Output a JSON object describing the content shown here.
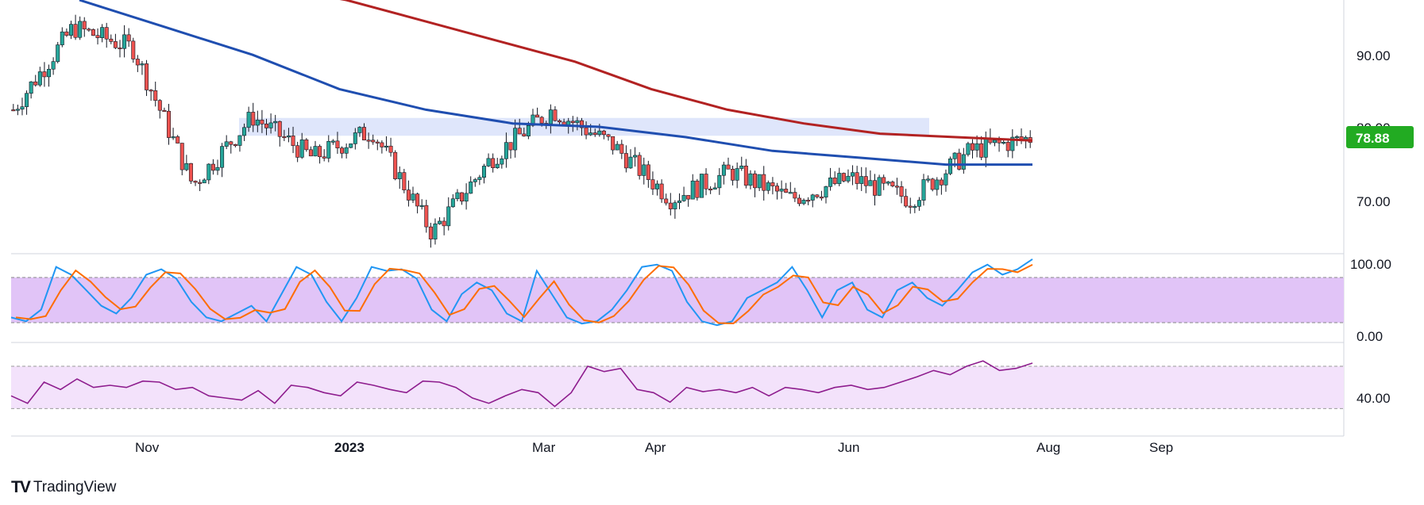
{
  "brand": {
    "logo": "TV",
    "name": "TradingView"
  },
  "colors": {
    "up": "#26a69a",
    "down": "#ef5350",
    "wick": "#131722",
    "ma_red": "#b22222",
    "ma_blue": "#1f4eb0",
    "stoch_k": "#2196f3",
    "stoch_d": "#ff6d00",
    "stoch_band": "#e1c4f7",
    "rsi_line": "#8e1d8e",
    "rsi_band": "#f3e2fb",
    "zone": "#dfe6fb",
    "last_price": "#22ab22"
  },
  "chart_data": [
    {
      "type": "candlestick",
      "price_axis_ticks": [
        "90.00",
        "80.00",
        "70.00"
      ],
      "ylim": [
        62,
        99
      ],
      "last_price": "78.88",
      "x_ticks": [
        "Nov",
        "2023",
        "Mar",
        "Apr",
        "Jun",
        "Aug",
        "Sep"
      ],
      "resistance_zone": [
        79.2,
        81.8
      ],
      "key_points": [
        {
          "date": "Oct 2022",
          "close": 83
        },
        {
          "date": "Oct 2022",
          "close": 95
        },
        {
          "date": "Nov 2022",
          "close": 92
        },
        {
          "date": "Dec 2022",
          "close": 72
        },
        {
          "date": "Jan 2023",
          "close": 82
        },
        {
          "date": "Feb 2023",
          "close": 76
        },
        {
          "date": "Mar 2023",
          "close": 80
        },
        {
          "date": "Mar 2023",
          "close": 65
        },
        {
          "date": "Apr 2023",
          "close": 76
        },
        {
          "date": "Apr 2023",
          "close": 83
        },
        {
          "date": "May 2023",
          "close": 78
        },
        {
          "date": "May 2023",
          "close": 70
        },
        {
          "date": "May 2023",
          "close": 74
        },
        {
          "date": "Jun 2023",
          "close": 70
        },
        {
          "date": "Jun 2023",
          "close": 73
        },
        {
          "date": "Jul 2023",
          "close": 70
        },
        {
          "date": "Jul 2023",
          "close": 77
        },
        {
          "date": "Jul 2023",
          "close": 78.88
        }
      ],
      "ma_red": [
        101,
        99,
        96,
        93,
        90,
        86,
        83,
        81,
        79.5,
        79,
        78.5
      ],
      "ma_blue": [
        99,
        95,
        91,
        86,
        83,
        81,
        80.5,
        79,
        77,
        76,
        75,
        75
      ]
    },
    {
      "type": "line",
      "name": "stochastic",
      "ticks": [
        "100.00",
        "0.00"
      ],
      "ylim": [
        0,
        100
      ],
      "band": [
        20,
        80
      ],
      "k_values": [
        20,
        15,
        30,
        85,
        75,
        55,
        35,
        25,
        45,
        75,
        82,
        70,
        40,
        20,
        15,
        25,
        35,
        15,
        50,
        85,
        75,
        40,
        15,
        45,
        85,
        80,
        82,
        70,
        30,
        15,
        50,
        65,
        55,
        25,
        15,
        80,
        50,
        20,
        12,
        15,
        30,
        55,
        85,
        88,
        80,
        40,
        15,
        10,
        15,
        45,
        55,
        65,
        85,
        55,
        20,
        55,
        65,
        30,
        20,
        55,
        65,
        45,
        35,
        55,
        78,
        88,
        75,
        82,
        95
      ]
    },
    {
      "type": "line",
      "name": "rsi",
      "ticks": [
        "40.00"
      ],
      "ylim": [
        25,
        85
      ],
      "band": [
        30,
        70
      ],
      "values": [
        42,
        35,
        55,
        48,
        58,
        50,
        52,
        50,
        56,
        55,
        48,
        50,
        42,
        40,
        38,
        47,
        35,
        52,
        50,
        45,
        42,
        55,
        52,
        48,
        45,
        56,
        55,
        50,
        40,
        35,
        42,
        48,
        45,
        32,
        45,
        70,
        65,
        68,
        48,
        45,
        36,
        50,
        46,
        48,
        45,
        50,
        42,
        50,
        48,
        45,
        50,
        52,
        48,
        50,
        55,
        60,
        66,
        62,
        70,
        75,
        66,
        68,
        73
      ]
    }
  ]
}
